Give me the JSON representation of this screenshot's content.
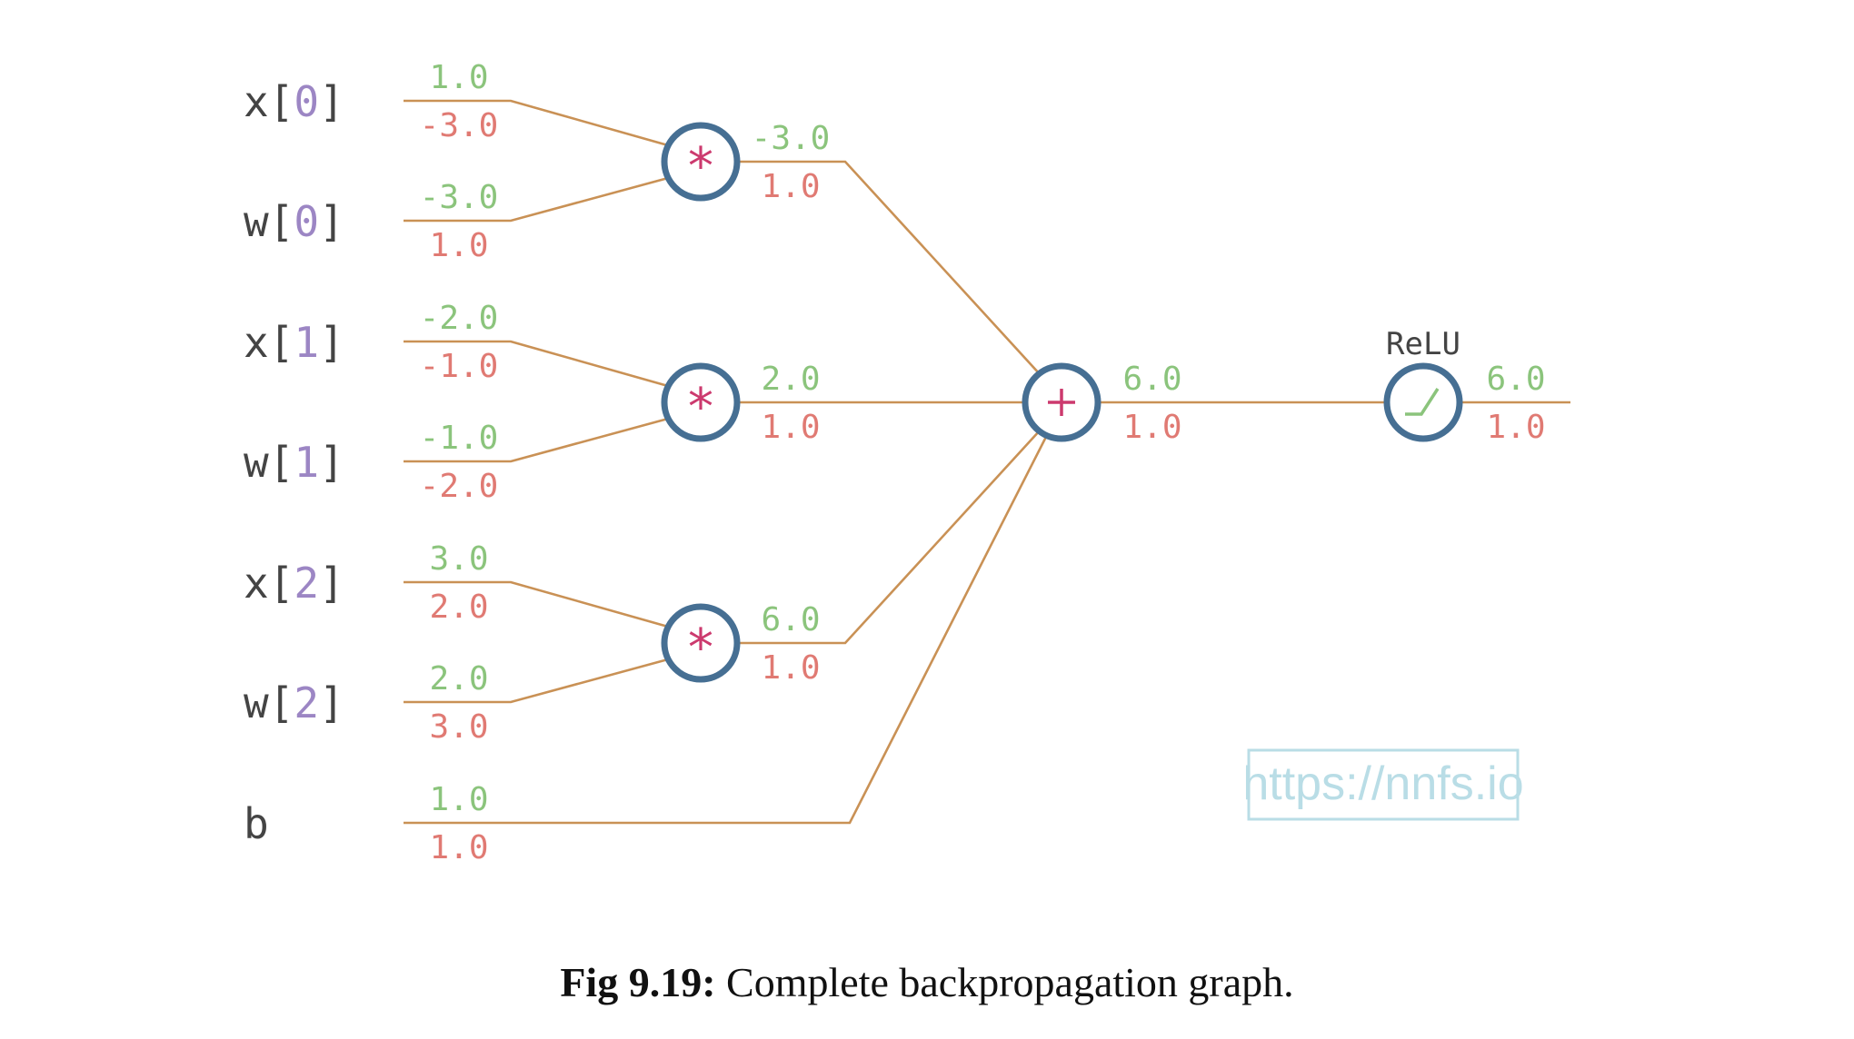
{
  "colors": {
    "edge": "#c99155",
    "node_stroke": "#466f93",
    "op": "#cc3a6e",
    "forward": "#8bc47c",
    "gradient": "#e07a73",
    "label_text": "#444444",
    "index": "#9c86c4",
    "watermark": "#b9dde6",
    "relu_icon": "#8bc47c"
  },
  "inputs": [
    {
      "name": "x",
      "index": "0",
      "value": "1.0",
      "grad": "-3.0"
    },
    {
      "name": "w",
      "index": "0",
      "value": "-3.0",
      "grad": "1.0"
    },
    {
      "name": "x",
      "index": "1",
      "value": "-2.0",
      "grad": "-1.0"
    },
    {
      "name": "w",
      "index": "1",
      "value": "-1.0",
      "grad": "-2.0"
    },
    {
      "name": "x",
      "index": "2",
      "value": "3.0",
      "grad": "2.0"
    },
    {
      "name": "w",
      "index": "2",
      "value": "2.0",
      "grad": "3.0"
    },
    {
      "name": "b",
      "index": "",
      "value": "1.0",
      "grad": "1.0"
    }
  ],
  "multiply_nodes": [
    {
      "symbol": "*",
      "value": "-3.0",
      "grad": "1.0"
    },
    {
      "symbol": "*",
      "value": "2.0",
      "grad": "1.0"
    },
    {
      "symbol": "*",
      "value": "6.0",
      "grad": "1.0"
    }
  ],
  "sum_node": {
    "symbol": "+",
    "value": "6.0",
    "grad": "1.0"
  },
  "relu_node": {
    "label": "ReLU",
    "value": "6.0",
    "grad": "1.0",
    "icon": "relu-curve-icon"
  },
  "watermark": "https://nnfs.io",
  "caption": {
    "label": "Fig 9.19:",
    "text": " Complete backpropagation graph."
  }
}
